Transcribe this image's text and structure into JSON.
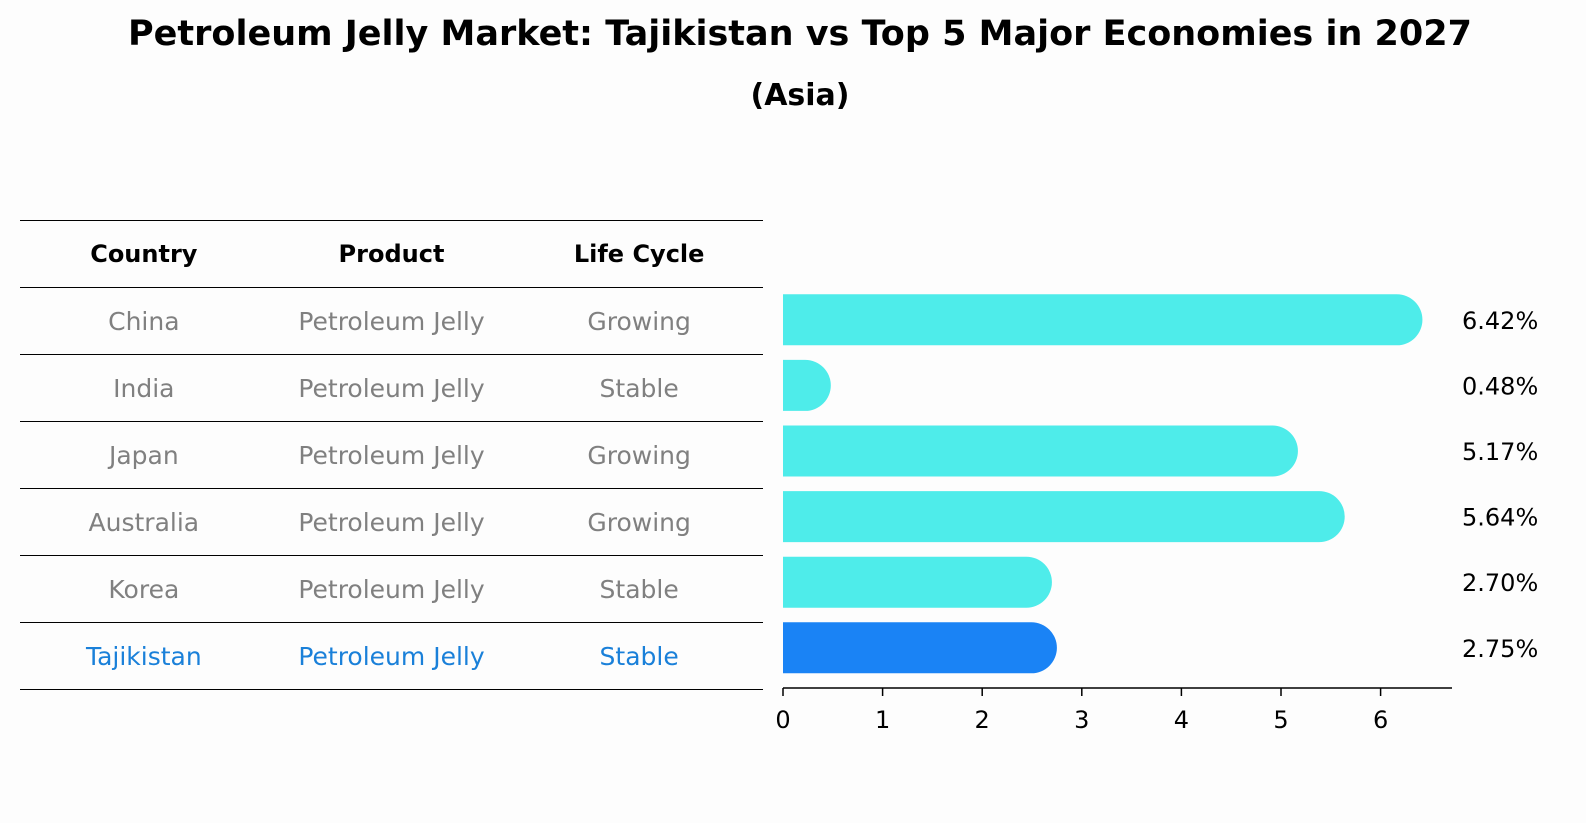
{
  "title": "Petroleum Jelly Market: Tajikistan vs Top 5 Major Economies in 2027",
  "subtitle": "(Asia)",
  "table": {
    "headers": [
      "Country",
      "Product",
      "Life Cycle"
    ],
    "rows": [
      {
        "country": "China",
        "product": "Petroleum Jelly",
        "life_cycle": "Growing"
      },
      {
        "country": "India",
        "product": "Petroleum Jelly",
        "life_cycle": "Stable"
      },
      {
        "country": "Japan",
        "product": "Petroleum Jelly",
        "life_cycle": "Growing"
      },
      {
        "country": "Australia",
        "product": "Petroleum Jelly",
        "life_cycle": "Growing"
      },
      {
        "country": "Korea",
        "product": "Petroleum Jelly",
        "life_cycle": "Stable"
      },
      {
        "country": "Tajikistan",
        "product": "Petroleum Jelly",
        "life_cycle": "Stable"
      }
    ]
  },
  "colors": {
    "bar": "#4eecea",
    "highlight_bar": "#1a83f5",
    "highlight_text": "#1a80d9",
    "muted_text": "#808080"
  },
  "chart_data": {
    "type": "bar",
    "orientation": "horizontal",
    "categories": [
      "China",
      "India",
      "Japan",
      "Australia",
      "Korea",
      "Tajikistan"
    ],
    "values": [
      6.42,
      0.48,
      5.17,
      5.64,
      2.7,
      2.75
    ],
    "labels": [
      "6.42%",
      "0.48%",
      "5.17%",
      "5.64%",
      "2.70%",
      "2.75%"
    ],
    "highlight": "Tajikistan",
    "xlim": [
      0,
      6.75
    ],
    "xticks": [
      0,
      1,
      2,
      3,
      4,
      5,
      6
    ],
    "xlabel": "",
    "ylabel": ""
  }
}
